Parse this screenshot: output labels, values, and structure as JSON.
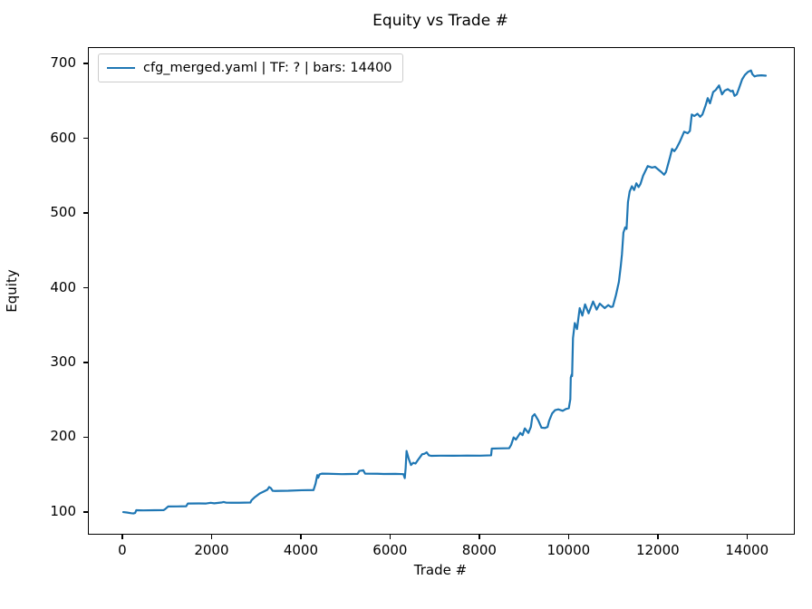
{
  "title": "Equity vs Trade #",
  "xlabel": "Trade #",
  "ylabel": "Equity",
  "legend": {
    "label": "cfg_merged.yaml | TF: ? | bars: 14400",
    "line_color": "#1f77b4"
  },
  "colors": {
    "series": "#1f77b4",
    "spine": "#000000",
    "background": "#ffffff"
  },
  "chart_data": {
    "type": "line",
    "title": "Equity vs Trade #",
    "xlabel": "Trade #",
    "ylabel": "Equity",
    "xlim": [
      -771,
      15030
    ],
    "ylim": [
      72,
      722
    ],
    "xticks": [
      0,
      2000,
      4000,
      6000,
      8000,
      10000,
      12000,
      14000
    ],
    "yticks": [
      100,
      200,
      300,
      400,
      500,
      600,
      700
    ],
    "grid": false,
    "legend_position": "upper left",
    "series": [
      {
        "name": "cfg_merged.yaml | TF: ? | bars: 14400",
        "color": "#1f77b4",
        "x": [
          1,
          80,
          180,
          230,
          268,
          292,
          450,
          700,
          904,
          940,
          1006,
          1200,
          1410,
          1449,
          1700,
          1857,
          1960,
          2040,
          2200,
          2250,
          2310,
          2600,
          2850,
          2877,
          2950,
          3060,
          3150,
          3230,
          3270,
          3310,
          3350,
          3400,
          3700,
          4000,
          4265,
          4310,
          4330,
          4350,
          4370,
          4400,
          4450,
          4600,
          4900,
          5250,
          5290,
          5380,
          5420,
          5700,
          5836,
          6100,
          6280,
          6310,
          6330,
          6350,
          6400,
          6450,
          6500,
          6550,
          6620,
          6700,
          6750,
          6800,
          6850,
          6900,
          7100,
          7400,
          7700,
          8000,
          8245,
          8260,
          8400,
          8650,
          8694,
          8750,
          8800,
          8898,
          8950,
          9000,
          9080,
          9136,
          9170,
          9220,
          9300,
          9374,
          9450,
          9510,
          9544,
          9612,
          9680,
          9750,
          9850,
          9920,
          9986,
          10020,
          10030,
          10050,
          10060,
          10080,
          10120,
          10170,
          10230,
          10290,
          10350,
          10430,
          10530,
          10610,
          10680,
          10790,
          10870,
          10930,
          10973,
          11041,
          11108,
          11150,
          11177,
          11210,
          11250,
          11280,
          11312,
          11350,
          11400,
          11450,
          11500,
          11550,
          11592,
          11650,
          11755,
          11850,
          11920,
          12020,
          12061,
          12122,
          12163,
          12250,
          12300,
          12350,
          12400,
          12469,
          12520,
          12571,
          12650,
          12700,
          12741,
          12800,
          12870,
          12930,
          12980,
          13050,
          13100,
          13150,
          13220,
          13280,
          13353,
          13420,
          13480,
          13550,
          13620,
          13659,
          13700,
          13750,
          13800,
          13870,
          13932,
          14000,
          14069,
          14100,
          14150,
          14204,
          14300,
          14400
        ],
        "y": [
          101,
          100.5,
          99.5,
          99.2,
          100,
          103.5,
          103.3,
          103.5,
          103.6,
          105,
          108.5,
          108.6,
          108.8,
          112.5,
          112.6,
          112.5,
          113.5,
          112.8,
          113.8,
          114.5,
          113.6,
          113.5,
          113.8,
          117,
          121,
          126,
          128.5,
          131,
          134.5,
          133,
          129.5,
          129.3,
          129.6,
          130.3,
          130.5,
          139,
          145,
          150.5,
          147,
          151.5,
          152.5,
          152.3,
          151.8,
          152.2,
          156,
          157,
          152.5,
          152.3,
          152,
          152.2,
          151.8,
          146.5,
          160,
          182.8,
          172,
          164,
          167,
          166,
          172,
          178.5,
          179,
          181,
          177,
          176.3,
          176.5,
          176.4,
          176.6,
          176.5,
          177,
          186,
          186.2,
          186.5,
          191,
          201,
          198,
          207,
          204,
          213,
          207,
          215,
          229,
          232,
          224,
          214,
          213.5,
          215,
          223,
          233,
          237.5,
          238.5,
          236.5,
          239,
          240,
          252,
          281,
          285,
          283,
          334,
          354,
          346,
          374,
          364,
          379,
          367,
          382.8,
          372,
          380,
          374,
          378,
          375.5,
          376,
          391,
          409,
          430,
          446,
          475,
          482,
          480,
          516,
          530,
          537,
          532,
          541,
          536,
          540,
          551,
          564,
          562,
          563,
          558,
          556,
          552.5,
          556,
          575,
          587,
          584,
          588,
          596,
          603,
          610,
          608,
          611,
          633,
          631,
          634,
          630,
          633,
          645,
          655,
          648,
          663,
          666,
          672,
          660,
          665,
          667,
          664,
          665,
          658,
          660,
          668,
          680,
          686,
          690,
          692,
          687,
          684,
          685,
          685.5,
          685
        ]
      }
    ]
  }
}
